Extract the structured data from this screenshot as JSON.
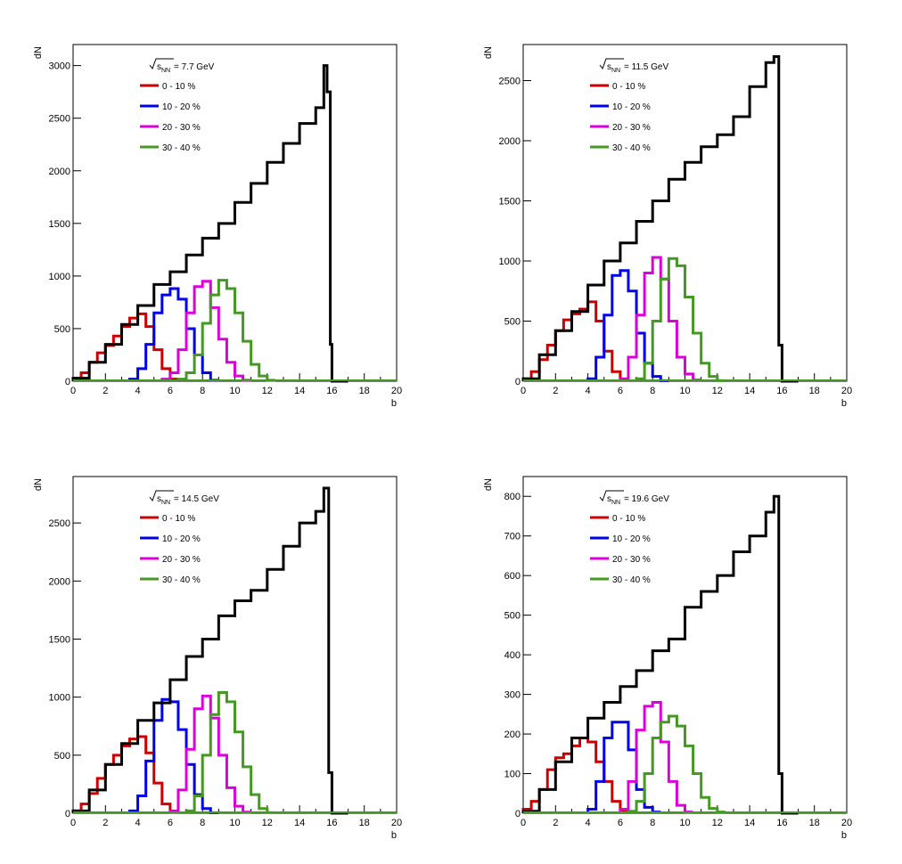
{
  "chart_data": [
    {
      "type": "line",
      "title": "= 7.7 GeV",
      "xlabel": "b",
      "ylabel": "dN",
      "xlim": [
        0,
        20
      ],
      "ylim": [
        0,
        3200
      ],
      "xticks": [
        0,
        2,
        4,
        6,
        8,
        10,
        12,
        14,
        16,
        18,
        20
      ],
      "yticks": [
        0,
        500,
        1000,
        1500,
        2000,
        2500,
        3000
      ],
      "legend_position": "top-left",
      "series": [
        {
          "name": "0 - 10 %",
          "color": "#cc0000",
          "x": [
            0,
            0.5,
            1,
            1.5,
            2,
            2.5,
            3,
            3.5,
            4,
            4.5,
            5,
            5.5,
            6
          ],
          "values": [
            20,
            80,
            180,
            270,
            340,
            430,
            520,
            600,
            640,
            520,
            300,
            120,
            20
          ]
        },
        {
          "name": "10 - 20 %",
          "color": "#0000ee",
          "x": [
            3.5,
            4,
            4.5,
            5,
            5.5,
            6,
            6.5,
            7,
            7.5,
            8,
            8.5
          ],
          "values": [
            20,
            120,
            350,
            650,
            820,
            880,
            780,
            500,
            250,
            80,
            10
          ]
        },
        {
          "name": "20 - 30 %",
          "color": "#dd00dd",
          "x": [
            5.5,
            6,
            6.5,
            7,
            7.5,
            8,
            8.5,
            9,
            9.5,
            10,
            10.5
          ],
          "values": [
            20,
            80,
            300,
            650,
            900,
            950,
            700,
            400,
            180,
            50,
            10
          ]
        },
        {
          "name": "30 - 40 %",
          "color": "#449922",
          "x": [
            6.5,
            7,
            7.5,
            8,
            8.5,
            9,
            9.5,
            10,
            10.5,
            11,
            11.5,
            12
          ],
          "values": [
            20,
            80,
            250,
            550,
            820,
            960,
            880,
            650,
            380,
            160,
            50,
            10
          ]
        },
        {
          "name": "",
          "color": "#000000",
          "x": [
            0,
            1,
            2,
            3,
            4,
            5,
            6,
            7,
            8,
            9,
            10,
            11,
            12,
            13,
            14,
            15,
            15.5,
            15.7,
            15.9,
            16
          ],
          "values": [
            30,
            180,
            350,
            540,
            720,
            920,
            1040,
            1200,
            1360,
            1500,
            1700,
            1880,
            2080,
            2260,
            2450,
            2600,
            3000,
            2750,
            350,
            0
          ]
        }
      ]
    },
    {
      "type": "line",
      "title": "= 11.5 GeV",
      "xlabel": "b",
      "ylabel": "dN",
      "xlim": [
        0,
        20
      ],
      "ylim": [
        0,
        2800
      ],
      "xticks": [
        0,
        2,
        4,
        6,
        8,
        10,
        12,
        14,
        16,
        18,
        20
      ],
      "yticks": [
        0,
        500,
        1000,
        1500,
        2000,
        2500
      ],
      "legend_position": "top-left",
      "series": [
        {
          "name": "0 - 10 %",
          "color": "#cc0000",
          "x": [
            0,
            0.5,
            1,
            1.5,
            2,
            2.5,
            3,
            3.5,
            4,
            4.5,
            5,
            5.5,
            6
          ],
          "values": [
            20,
            80,
            180,
            300,
            420,
            510,
            560,
            600,
            660,
            500,
            250,
            80,
            10
          ]
        },
        {
          "name": "10 - 20 %",
          "color": "#0000ee",
          "x": [
            4,
            4.5,
            5,
            5.5,
            6,
            6.5,
            7,
            7.5,
            8,
            8.5
          ],
          "values": [
            20,
            200,
            550,
            880,
            920,
            750,
            400,
            150,
            40,
            5
          ]
        },
        {
          "name": "20 - 30 %",
          "color": "#dd00dd",
          "x": [
            6,
            6.5,
            7,
            7.5,
            8,
            8.5,
            9,
            9.5,
            10,
            10.5
          ],
          "values": [
            20,
            200,
            550,
            900,
            1030,
            850,
            500,
            200,
            60,
            10
          ]
        },
        {
          "name": "30 - 40 %",
          "color": "#449922",
          "x": [
            7,
            7.5,
            8,
            8.5,
            9,
            9.5,
            10,
            10.5,
            11,
            11.5,
            12
          ],
          "values": [
            20,
            150,
            500,
            850,
            1020,
            960,
            700,
            400,
            150,
            40,
            5
          ]
        },
        {
          "name": "",
          "color": "#000000",
          "x": [
            0,
            1,
            2,
            3,
            4,
            5,
            6,
            7,
            8,
            9,
            10,
            11,
            12,
            13,
            14,
            15,
            15.5,
            15.8,
            16
          ],
          "values": [
            20,
            220,
            420,
            580,
            800,
            1000,
            1150,
            1330,
            1500,
            1680,
            1820,
            1950,
            2050,
            2200,
            2450,
            2650,
            2700,
            300,
            0
          ]
        }
      ]
    },
    {
      "type": "line",
      "title": "= 14.5 GeV",
      "xlabel": "b",
      "ylabel": "dN",
      "xlim": [
        0,
        20
      ],
      "ylim": [
        0,
        2900
      ],
      "xticks": [
        0,
        2,
        4,
        6,
        8,
        10,
        12,
        14,
        16,
        18,
        20
      ],
      "yticks": [
        0,
        500,
        1000,
        1500,
        2000,
        2500
      ],
      "legend_position": "top-left",
      "series": [
        {
          "name": "0 - 10 %",
          "color": "#cc0000",
          "x": [
            0,
            0.5,
            1,
            1.5,
            2,
            2.5,
            3,
            3.5,
            4,
            4.5,
            5,
            5.5,
            6
          ],
          "values": [
            20,
            80,
            170,
            300,
            420,
            500,
            580,
            640,
            660,
            520,
            260,
            80,
            10
          ]
        },
        {
          "name": "10 - 20 %",
          "color": "#0000ee",
          "x": [
            3.5,
            4,
            4.5,
            5,
            5.5,
            6,
            6.5,
            7,
            7.5,
            8,
            8.5
          ],
          "values": [
            20,
            150,
            450,
            800,
            980,
            960,
            720,
            420,
            160,
            40,
            5
          ]
        },
        {
          "name": "20 - 30 %",
          "color": "#dd00dd",
          "x": [
            6,
            6.5,
            7,
            7.5,
            8,
            8.5,
            9,
            9.5,
            10,
            10.5
          ],
          "values": [
            20,
            200,
            550,
            900,
            1010,
            820,
            500,
            220,
            60,
            10
          ]
        },
        {
          "name": "30 - 40 %",
          "color": "#449922",
          "x": [
            7,
            7.5,
            8,
            8.5,
            9,
            9.5,
            10,
            10.5,
            11,
            11.5,
            12
          ],
          "values": [
            20,
            150,
            500,
            850,
            1040,
            960,
            700,
            400,
            160,
            40,
            5
          ]
        },
        {
          "name": "",
          "color": "#000000",
          "x": [
            0,
            1,
            2,
            3,
            4,
            5,
            6,
            7,
            8,
            9,
            10,
            11,
            12,
            13,
            14,
            15,
            15.5,
            15.8,
            16
          ],
          "values": [
            20,
            200,
            420,
            600,
            800,
            950,
            1150,
            1350,
            1500,
            1700,
            1830,
            1920,
            2100,
            2300,
            2500,
            2600,
            2800,
            350,
            0
          ]
        }
      ]
    },
    {
      "type": "line",
      "title": "= 19.6 GeV",
      "xlabel": "b",
      "ylabel": "dN",
      "xlim": [
        0,
        20
      ],
      "ylim": [
        0,
        850
      ],
      "xticks": [
        0,
        2,
        4,
        6,
        8,
        10,
        12,
        14,
        16,
        18,
        20
      ],
      "yticks": [
        0,
        100,
        200,
        300,
        400,
        500,
        600,
        700,
        800
      ],
      "legend_position": "top-left",
      "series": [
        {
          "name": "0 - 10 %",
          "color": "#cc0000",
          "x": [
            0,
            0.5,
            1,
            1.5,
            2,
            2.5,
            3,
            3.5,
            4,
            4.5,
            5,
            5.5,
            6
          ],
          "values": [
            10,
            30,
            60,
            110,
            140,
            150,
            170,
            190,
            180,
            130,
            80,
            30,
            5
          ]
        },
        {
          "name": "10 - 20 %",
          "color": "#0000ee",
          "x": [
            4,
            4.5,
            5,
            5.5,
            6,
            6.5,
            7,
            7.5,
            8
          ],
          "values": [
            10,
            80,
            190,
            230,
            230,
            160,
            60,
            15,
            3
          ]
        },
        {
          "name": "20 - 30 %",
          "color": "#dd00dd",
          "x": [
            6,
            6.5,
            7,
            7.5,
            8,
            8.5,
            9,
            9.5,
            10
          ],
          "values": [
            10,
            80,
            210,
            270,
            280,
            180,
            80,
            20,
            3
          ]
        },
        {
          "name": "30 - 40 %",
          "color": "#449922",
          "x": [
            6.5,
            7,
            7.5,
            8,
            8.5,
            9,
            9.5,
            10,
            10.5,
            11,
            11.5,
            12
          ],
          "values": [
            5,
            30,
            100,
            190,
            230,
            245,
            220,
            170,
            100,
            40,
            12,
            3
          ]
        },
        {
          "name": "",
          "color": "#000000",
          "x": [
            0,
            1,
            2,
            3,
            4,
            5,
            6,
            7,
            8,
            9,
            10,
            11,
            12,
            13,
            14,
            15,
            15.5,
            15.8,
            16
          ],
          "values": [
            5,
            60,
            130,
            190,
            240,
            280,
            320,
            360,
            410,
            440,
            520,
            560,
            600,
            660,
            700,
            760,
            800,
            100,
            0
          ]
        }
      ]
    }
  ]
}
